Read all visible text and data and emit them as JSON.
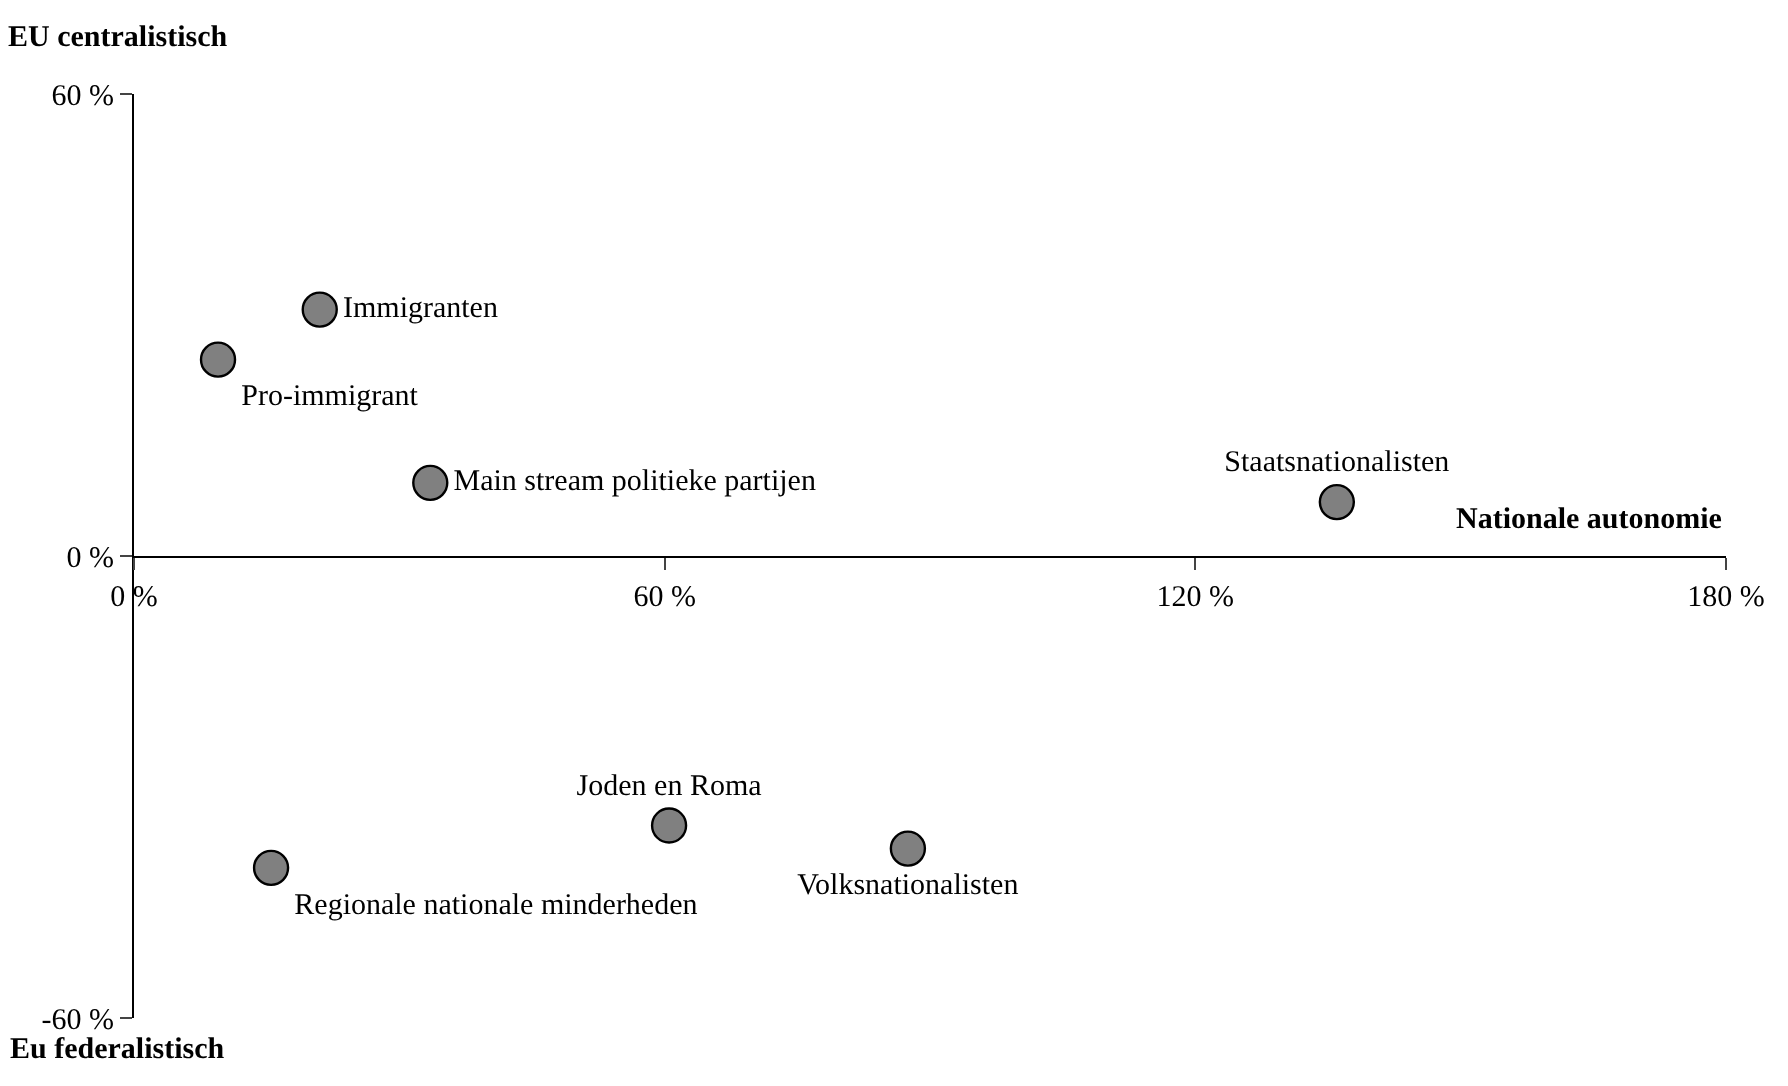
{
  "chart_data": {
    "type": "scatter",
    "xlabel": "Nationale autonomie",
    "ylabel": "EU centralistisch",
    "annotations": [
      "Eu federalistisch"
    ],
    "xlim": [
      0,
      180
    ],
    "xticks": [
      {
        "value": 0,
        "label": "0 %"
      },
      {
        "value": 60,
        "label": "60 %"
      },
      {
        "value": 120,
        "label": "120 %"
      },
      {
        "value": 180,
        "label": "180 %"
      }
    ],
    "ylim": [
      -60,
      60
    ],
    "yticks": [
      {
        "value": -60,
        "label": "-60 %"
      },
      {
        "value": 0,
        "label": "0 %"
      },
      {
        "value": 60,
        "label": "60 %"
      }
    ],
    "marker": "circle",
    "legend": false,
    "series": [
      {
        "name": "Immigranten",
        "color": "#808080",
        "x": [
          21
        ],
        "values": [
          32
        ]
      },
      {
        "name": "Pro-immigrant",
        "color": "#808080",
        "x": [
          9.5
        ],
        "values": [
          25.5
        ]
      },
      {
        "name": "Main stream politieke partijen",
        "color": "#808080",
        "x": [
          33.5
        ],
        "values": [
          9.5
        ]
      },
      {
        "name": "Staatsnationalisten",
        "color": "#808080",
        "x": [
          136
        ],
        "values": [
          7
        ]
      },
      {
        "name": "Joden en Roma",
        "color": "#808080",
        "x": [
          60.5
        ],
        "values": [
          -35
        ]
      },
      {
        "name": "Regionale nationale minderheden",
        "color": "#808080",
        "x": [
          15.5
        ],
        "values": [
          -40.5
        ]
      },
      {
        "name": "Volksnationalisten",
        "color": "#808080",
        "x": [
          87.5
        ],
        "values": [
          -38
        ]
      }
    ]
  }
}
